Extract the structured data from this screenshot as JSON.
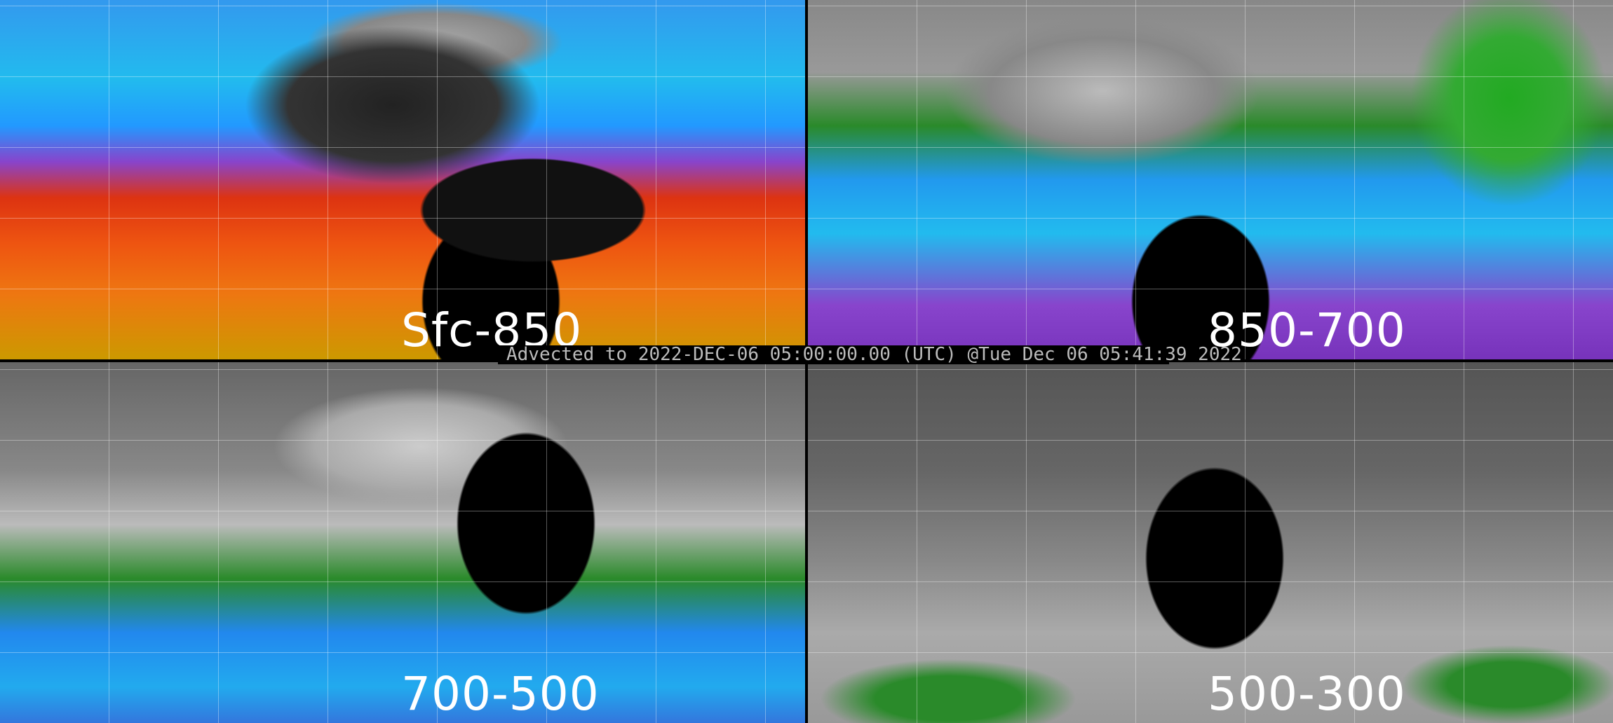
{
  "caption": "Advected to 2022-DEC-06 05:00:00.00 (UTC) @Tue Dec 06 05:41:39 2022",
  "panels": [
    {
      "label": "Sfc-850"
    },
    {
      "label": "850-700"
    },
    {
      "label": "700-500"
    },
    {
      "label": "500-300"
    }
  ]
}
